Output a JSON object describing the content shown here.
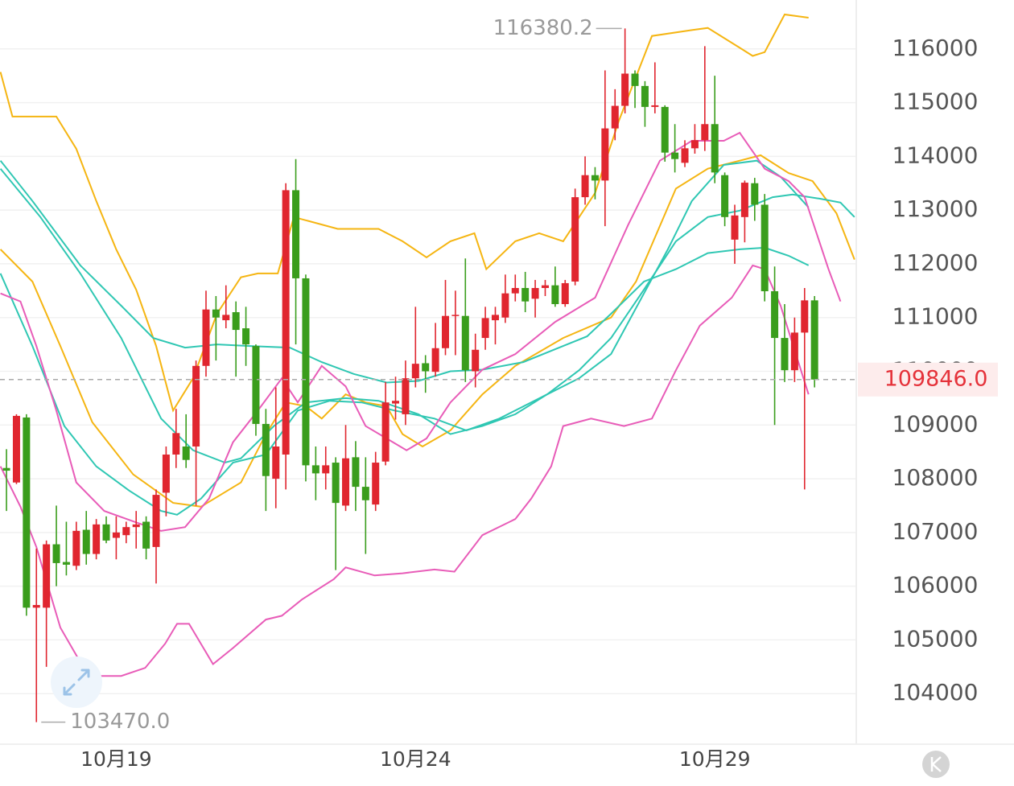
{
  "chart_data": {
    "type": "candlestick",
    "categories": [
      null,
      null,
      null,
      null,
      null,
      null,
      null,
      null,
      null,
      null,
      null,
      "10月19",
      null,
      null,
      null,
      null,
      null,
      null,
      null,
      null,
      null,
      null,
      null,
      null,
      null,
      null,
      null,
      null,
      null,
      null,
      null,
      null,
      null,
      null,
      null,
      null,
      null,
      null,
      null,
      null,
      null,
      "10月24",
      null,
      null,
      null,
      null,
      null,
      null,
      null,
      null,
      null,
      null,
      null,
      null,
      null,
      null,
      null,
      null,
      null,
      null,
      null,
      null,
      null,
      null,
      null,
      null,
      null,
      null,
      null,
      null,
      null,
      "10月29",
      null,
      null,
      null,
      null,
      null,
      null,
      null,
      null,
      null,
      null
    ],
    "open": [
      108200,
      107930,
      109140,
      105600,
      105600,
      106780,
      106450,
      106380,
      107050,
      106600,
      107150,
      106900,
      106950,
      107100,
      107200,
      106730,
      107740,
      108450,
      108600,
      108600,
      110100,
      111150,
      110950,
      111100,
      110800,
      110470,
      109020,
      108000,
      108450,
      113370,
      111730,
      108250,
      108100,
      108300,
      107500,
      108400,
      107850,
      107520,
      108320,
      109400,
      109200,
      109870,
      110150,
      109990,
      110430,
      111030,
      111030,
      110000,
      110620,
      110950,
      111000,
      111450,
      111550,
      111350,
      111550,
      111600,
      111250,
      111670,
      113240,
      113650,
      113550,
      114520,
      114940,
      115540,
      115310,
      114920,
      114920,
      114070,
      113880,
      114150,
      114300,
      114600,
      113650,
      112450,
      112870,
      113500,
      113100,
      111490,
      110620,
      110020,
      110720,
      111320
    ],
    "high": [
      108550,
      109200,
      109200,
      106700,
      106850,
      107500,
      107200,
      107200,
      107400,
      107250,
      107300,
      107300,
      107200,
      107400,
      107300,
      107800,
      108600,
      109300,
      109200,
      110200,
      111500,
      111400,
      111600,
      111300,
      111200,
      110500,
      109300,
      109700,
      113500,
      113950,
      111800,
      108600,
      108600,
      108400,
      109000,
      108700,
      108400,
      108500,
      109800,
      109900,
      110200,
      111200,
      110300,
      110900,
      111700,
      111500,
      112100,
      110700,
      111200,
      111200,
      111800,
      111800,
      111850,
      111700,
      111700,
      111950,
      111700,
      113400,
      114000,
      113800,
      115600,
      115250,
      116380.2,
      115600,
      115400,
      115750,
      114950,
      114600,
      114300,
      114600,
      116050,
      115500,
      113700,
      113100,
      113550,
      113600,
      113300,
      111950,
      111250,
      111000,
      111550,
      111400
    ],
    "low": [
      107400,
      107900,
      105450,
      103470,
      104500,
      106000,
      106200,
      106300,
      106400,
      106500,
      106800,
      106500,
      106800,
      106700,
      106500,
      106050,
      107300,
      108200,
      108200,
      107500,
      109900,
      110200,
      110800,
      109900,
      110100,
      108800,
      107400,
      107450,
      107800,
      110500,
      107950,
      107600,
      107800,
      106300,
      107400,
      107400,
      106600,
      107400,
      108250,
      109100,
      109000,
      109700,
      109600,
      109900,
      110300,
      110300,
      109800,
      109700,
      110400,
      110500,
      110900,
      111300,
      111100,
      111000,
      111400,
      111200,
      111200,
      111600,
      113100,
      113200,
      112700,
      114300,
      114800,
      114900,
      114550,
      114800,
      113900,
      113700,
      113800,
      114050,
      114100,
      113500,
      112700,
      112000,
      112400,
      112800,
      111300,
      109000,
      109800,
      109800,
      107800,
      109700
    ],
    "close": [
      108150,
      109170,
      105600,
      105650,
      106780,
      106430,
      106400,
      107030,
      106600,
      107150,
      106850,
      107000,
      107100,
      107150,
      106700,
      107700,
      108450,
      108850,
      108350,
      110100,
      111150,
      111000,
      111050,
      110770,
      110500,
      109020,
      108050,
      108600,
      113370,
      111730,
      108250,
      108100,
      108250,
      107550,
      108380,
      107850,
      107600,
      108300,
      109420,
      109450,
      109870,
      110140,
      110000,
      110430,
      111030,
      111050,
      110020,
      110400,
      110990,
      111050,
      111450,
      111550,
      111300,
      111550,
      111600,
      111250,
      111640,
      113240,
      113650,
      113550,
      114520,
      114940,
      115540,
      115310,
      114920,
      114950,
      114070,
      113950,
      114150,
      114300,
      114600,
      113700,
      112870,
      112900,
      113510,
      113100,
      111490,
      110620,
      110020,
      110720,
      111320,
      109846
    ],
    "up_color": "#e0262f",
    "down_color": "#3a9d1c",
    "lines": [
      {
        "color": "#f5b512",
        "x": [
          -0.6,
          0.6,
          5,
          7,
          9,
          11,
          13,
          15,
          16.7,
          18.7,
          21.1,
          23.5,
          25.2,
          27.2,
          28.8,
          33.2,
          37.3,
          39.7,
          42.1,
          44.5,
          46.9,
          48.1,
          51,
          53.4,
          55.8,
          59,
          61.4,
          64.7,
          68.7,
          70.3,
          73.5,
          74.8,
          76,
          78,
          80.4
        ],
        "values": [
          115570,
          114740,
          114740,
          114140,
          113170,
          112270,
          111520,
          110470,
          109270,
          109870,
          111070,
          111750,
          111820,
          111820,
          112870,
          112650,
          112650,
          112420,
          112120,
          112420,
          112570,
          111900,
          112420,
          112570,
          112420,
          113320,
          114670,
          116240,
          116350,
          116390,
          116020,
          115870,
          115940,
          116640,
          116580
        ]
      },
      {
        "color": "#f5b512",
        "x": [
          -0.6,
          2.6,
          5.4,
          8.6,
          12.7,
          16.7,
          19.5,
          23.5,
          26,
          28,
          30,
          31.6,
          34,
          36,
          38.1,
          39.7,
          41.7,
          44.5,
          47.7,
          51,
          55.8,
          60.6,
          63.1,
          67.1,
          70.3,
          73.5,
          75.6,
          78.4,
          80.8,
          83.2,
          85
        ],
        "values": [
          112270,
          111670,
          110470,
          109050,
          108080,
          107550,
          107480,
          107930,
          108830,
          109420,
          109350,
          109120,
          109570,
          109420,
          109350,
          108830,
          108600,
          108900,
          109570,
          110100,
          110620,
          111000,
          111670,
          113400,
          113770,
          113920,
          114020,
          113690,
          113540,
          112940,
          112080
        ]
      },
      {
        "color": "#2fc7b3",
        "x": [
          -0.6,
          2.6,
          7.4,
          11.5,
          14.7,
          17.9,
          21.1,
          24.4,
          28.4,
          31.6,
          34.8,
          38.1,
          41.3,
          44.5,
          47.7,
          51.8,
          55.8,
          58.2,
          60.6,
          63.9,
          67.1,
          70.3,
          73.5,
          76,
          78.4,
          80.4
        ],
        "values": [
          113920,
          113170,
          111970,
          111220,
          110620,
          110440,
          110500,
          110470,
          110440,
          110170,
          109950,
          109790,
          109820,
          110000,
          110030,
          110170,
          110470,
          110650,
          111070,
          111670,
          111900,
          112200,
          112270,
          112300,
          112150,
          111970
        ]
      },
      {
        "color": "#2fc7b3",
        "x": [
          -0.6,
          3.4,
          7.4,
          11.5,
          15.5,
          18.7,
          21.9,
          23.5,
          26.8,
          30,
          34,
          37.3,
          41.3,
          44.5,
          47.7,
          51,
          54.2,
          57.4,
          60.6,
          63.9,
          66.3,
          68.7,
          71.9,
          75.2,
          77.6,
          80.4
        ],
        "values": [
          113770,
          112870,
          111820,
          110620,
          109120,
          108530,
          108300,
          108380,
          108980,
          109420,
          109500,
          109450,
          109200,
          108830,
          108980,
          109200,
          109570,
          109870,
          110320,
          111450,
          112270,
          113170,
          113840,
          113920,
          113620,
          113050
        ]
      },
      {
        "color": "#2fc7b3",
        "x": [
          -0.6,
          2.6,
          5.8,
          9,
          12.3,
          15.5,
          17.1,
          19.5,
          22.7,
          26,
          29.2,
          32.4,
          35.6,
          38.9,
          42.9,
          46.1,
          49.4,
          54.2,
          57.4,
          60.6,
          63.9,
          67.1,
          70.3,
          73.5,
          76.8,
          78.8,
          81.6,
          83.6,
          85
        ],
        "values": [
          111820,
          110470,
          108980,
          108230,
          107780,
          107400,
          107330,
          107630,
          108300,
          108450,
          109270,
          109450,
          109420,
          109270,
          109120,
          108900,
          109120,
          109570,
          110020,
          110620,
          111520,
          112420,
          112870,
          112990,
          113240,
          113290,
          113210,
          113140,
          112870
        ]
      },
      {
        "color": "#e85cb8",
        "x": [
          -0.6,
          1.4,
          3,
          5,
          7,
          9.8,
          13.1,
          15.5,
          17.9,
          20.3,
          22.7,
          25.2,
          27.6,
          29.2,
          31.6,
          34,
          36,
          38.1,
          40.1,
          42.1,
          44.5,
          47.7,
          51,
          55,
          59,
          62.3,
          65.5,
          68.7,
          71.9,
          73.5,
          76,
          78.4,
          80,
          82.4,
          83.6
        ],
        "values": [
          111450,
          111300,
          110470,
          109270,
          107930,
          107400,
          107180,
          107030,
          107100,
          107630,
          108680,
          109270,
          109870,
          109420,
          110100,
          109720,
          108980,
          108750,
          108530,
          108750,
          109420,
          110030,
          110320,
          110920,
          111370,
          112720,
          113920,
          114290,
          114290,
          114440,
          113770,
          113540,
          113240,
          111900,
          111300
        ]
      },
      {
        "color": "#e85cb8",
        "x": [
          -0.6,
          1.4,
          3,
          5.4,
          8.2,
          11.5,
          13.9,
          15.9,
          17.1,
          18.3,
          20.7,
          22.7,
          26,
          27.6,
          29.6,
          32.8,
          34,
          36.9,
          39.7,
          42.9,
          44.9,
          47.7,
          51,
          52.6,
          54.6,
          55.8,
          58.6,
          61.9,
          64.7,
          67.1,
          69.5,
          72.7,
          74.8,
          76,
          77.6,
          80.4
        ],
        "values": [
          108230,
          107480,
          106730,
          105230,
          104330,
          104330,
          104480,
          104930,
          105300,
          105300,
          104550,
          104850,
          105380,
          105450,
          105750,
          106130,
          106350,
          106200,
          106240,
          106310,
          106270,
          106950,
          107250,
          107630,
          108230,
          108980,
          109120,
          108980,
          109120,
          110020,
          110850,
          111370,
          111970,
          111900,
          111220,
          109570
        ]
      }
    ],
    "xlim": [
      -0.65,
      85.1
    ],
    "ylim": [
      103060,
      116910
    ],
    "yticks": [
      104000,
      105000,
      106000,
      107000,
      108000,
      109000,
      110000,
      111000,
      112000,
      113000,
      114000,
      115000,
      116000
    ],
    "grid": true,
    "max_label": {
      "value": 116380.2,
      "label": "116380.2"
    },
    "min_label": {
      "value": 103470,
      "label": "103470.0"
    },
    "last_price": {
      "value": 109846,
      "label": "109846.0"
    }
  }
}
